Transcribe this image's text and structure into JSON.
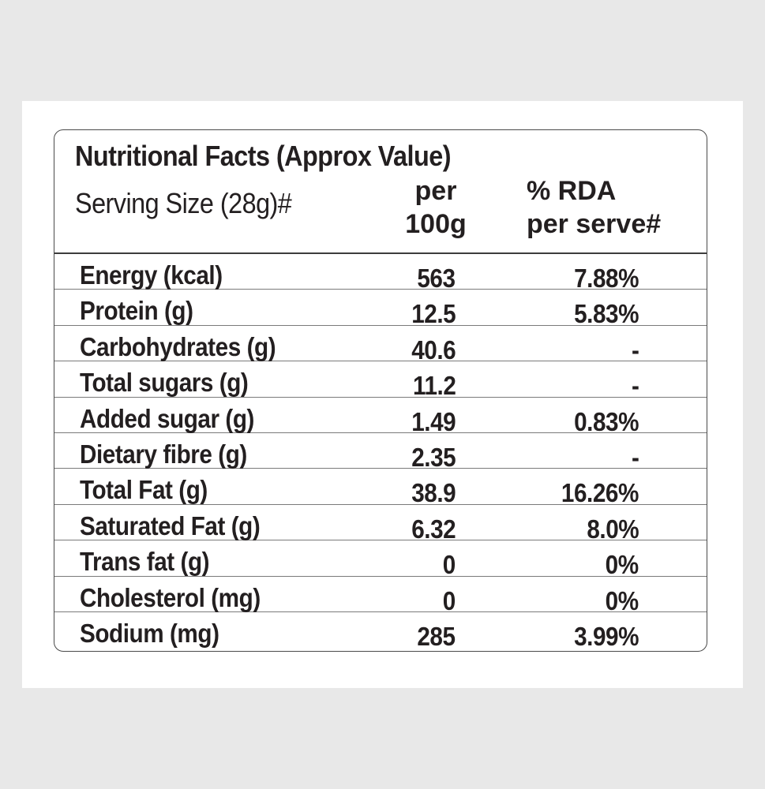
{
  "label": {
    "title": "Nutritional Facts (Approx Value)",
    "serving_size": "Serving Size (28g)#",
    "columns": {
      "per_100g": [
        "per",
        "100g"
      ],
      "rda_per_serve": [
        "% RDA",
        "per serve#"
      ]
    },
    "rows": [
      {
        "nutrient": "Energy (kcal)",
        "per_100g": "563",
        "rda": "7.88%"
      },
      {
        "nutrient": "Protein (g)",
        "per_100g": "12.5",
        "rda": "5.83%"
      },
      {
        "nutrient": "Carbohydrates (g)",
        "per_100g": "40.6",
        "rda": "-"
      },
      {
        "nutrient": "Total sugars (g)",
        "per_100g": "11.2",
        "rda": "-"
      },
      {
        "nutrient": "Added sugar (g)",
        "per_100g": "1.49",
        "rda": "0.83%"
      },
      {
        "nutrient": "Dietary fibre (g)",
        "per_100g": "2.35",
        "rda": "-"
      },
      {
        "nutrient": "Total Fat (g)",
        "per_100g": "38.9",
        "rda": "16.26%"
      },
      {
        "nutrient": "Saturated Fat (g)",
        "per_100g": "6.32",
        "rda": "8.0%"
      },
      {
        "nutrient": "Trans fat (g)",
        "per_100g": "0",
        "rda": "0%"
      },
      {
        "nutrient": "Cholesterol (mg)",
        "per_100g": "0",
        "rda": "0%"
      },
      {
        "nutrient": "Sodium (mg)",
        "per_100g": "285",
        "rda": "3.99%"
      }
    ]
  }
}
